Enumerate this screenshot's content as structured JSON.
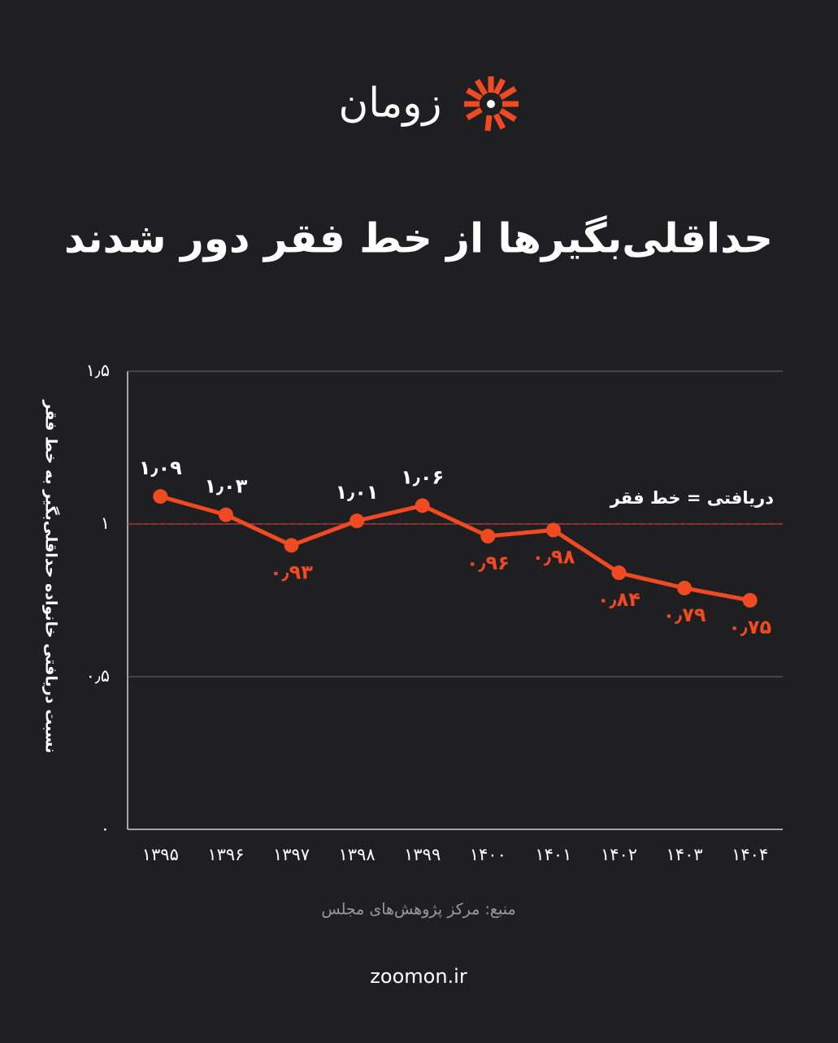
{
  "brand": "زومان",
  "chart_data": {
    "type": "line",
    "title": "حداقلی‌بگیرها از خط فقر دور شدند",
    "y_label": "نسبت دریافتی خانواده حداقلی‌بگیر به خط فقر",
    "annotation": "دریافتی = خط فقر",
    "reference_line": 1,
    "categories": [
      "۱۳۹۵",
      "۱۳۹۶",
      "۱۳۹۷",
      "۱۳۹۸",
      "۱۳۹۹",
      "۱۴۰۰",
      "۱۴۰۱",
      "۱۴۰۲",
      "۱۴۰۳",
      "۱۴۰۴"
    ],
    "values": [
      1.09,
      1.03,
      0.93,
      1.01,
      1.06,
      0.96,
      0.98,
      0.84,
      0.79,
      0.75
    ],
    "value_labels": [
      "۱٫۰۹",
      "۱٫۰۳",
      "۰٫۹۳",
      "۱٫۰۱",
      "۱٫۰۶",
      "۰٫۹۶",
      "۰٫۹۸",
      "۰٫۸۴",
      "۰٫۷۹",
      "۰٫۷۵"
    ],
    "color": "#f04a23",
    "ylim": [
      0,
      1.5
    ],
    "yticks": [
      {
        "value": 0,
        "label": "۰"
      },
      {
        "value": 0.5,
        "label": "۰٫۵"
      },
      {
        "value": 1,
        "label": "۱"
      },
      {
        "value": 1.5,
        "label": "۱٫۵"
      }
    ],
    "grid": true,
    "source": "منبع: مرکز پژوهش‌های مجلس",
    "website": "zoomon.ir"
  }
}
